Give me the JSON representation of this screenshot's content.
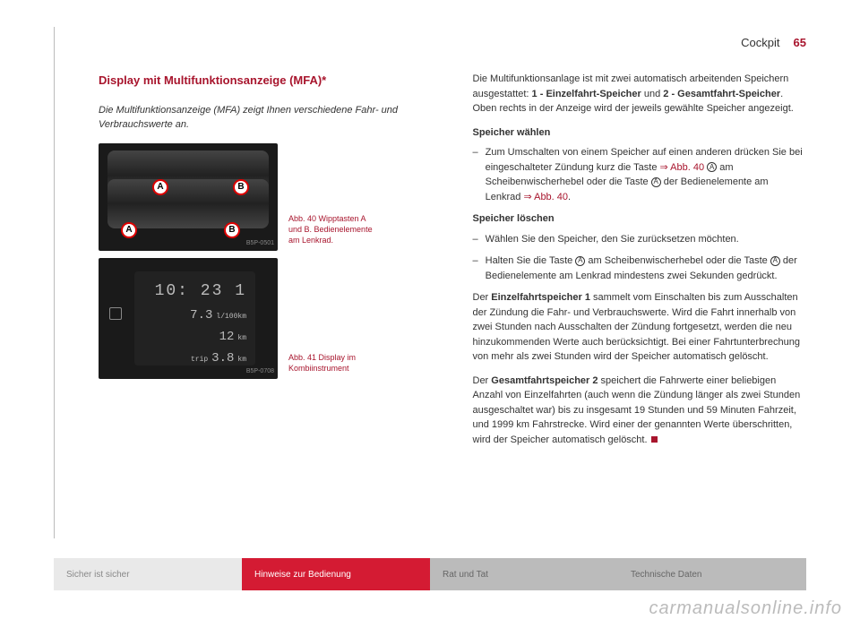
{
  "header": {
    "section": "Cockpit",
    "page_number": "65"
  },
  "section_title": "Display mit Multifunktionsanzeige (MFA)*",
  "intro": "Die Multifunktionsanzeige (MFA) zeigt Ihnen verschiedene Fahr- und Verbrauchswerte an.",
  "figure40": {
    "caption": "Abb. 40  Wipptasten A und B. Bedienelemente am Lenkrad.",
    "label": "B5P-0501",
    "markers": {
      "a": "A",
      "b": "B"
    }
  },
  "figure41": {
    "caption": "Abb. 41  Display im Kombiinstrument",
    "label": "B5P-0708",
    "display": {
      "line1": "10: 23     1",
      "line2_val": "7.3",
      "line2_unit": "l/100km",
      "line3_val": "12",
      "line3_unit": "km",
      "line4_label": "trip",
      "line4_val": "3.8",
      "line4_unit": "km"
    }
  },
  "right_col": {
    "para1_a": "Die Multifunktionsanlage ist mit zwei automatisch arbeitenden Speichern ausgestattet: ",
    "para1_b1": "1 - Einzelfahrt-Speicher",
    "para1_mid": " und ",
    "para1_b2": "2 - Gesamtfahrt-Speicher",
    "para1_c": ". Oben rechts in der Anzeige wird der jeweils gewählte Speicher angezeigt.",
    "sub1": "Speicher wählen",
    "bullet1_a": "Zum Umschalten von einem Speicher auf einen anderen drücken Sie bei eingeschalteter Zündung kurz die Taste ",
    "bullet1_ref": "⇒ Abb. 40",
    "bullet1_b": " am Scheibenwischerhebel oder die Taste ",
    "bullet1_c": " der Bedienelemente am Lenkrad ",
    "bullet1_ref2": "⇒ Abb. 40",
    "bullet1_d": ".",
    "sub2": "Speicher löschen",
    "bullet2": "Wählen Sie den Speicher, den Sie zurücksetzen möchten.",
    "bullet3_a": "Halten Sie die Taste ",
    "bullet3_b": " am Scheibenwischerhebel oder die Taste ",
    "bullet3_c": " der Bedienelemente am Lenkrad mindestens zwei Sekunden gedrückt.",
    "para2_b": "Einzelfahrtspeicher 1",
    "para2_a": " sammelt vom Einschalten bis zum Ausschalten der Zündung die Fahr- und Verbrauchswerte. Wird die Fahrt innerhalb von zwei Stunden nach Ausschalten der Zündung fortgesetzt, werden die neu hinzukommenden Werte auch berücksichtigt. Bei einer Fahrtunterbrechung von mehr als zwei Stunden wird der Speicher automatisch gelöscht.",
    "para3_b": "Gesamtfahrtspeicher 2",
    "para3_a": " speichert die Fahrwerte einer beliebigen Anzahl von Einzelfahrten (auch wenn die Zündung länger als zwei Stunden ausgeschaltet war) bis zu insgesamt 19 Stunden und 59 Minuten Fahrzeit, und 1999 km Fahrstrecke. Wird einer der genannten Werte überschritten, wird der Speicher automatisch gelöscht.",
    "circled_a": "A"
  },
  "tabs": {
    "t1": "Sicher ist sicher",
    "t2": "Hinweise zur Bedienung",
    "t3": "Rat und Tat",
    "t4": "Technische Daten"
  },
  "watermark": "carmanualsonline.info",
  "colors": {
    "accent": "#a8152d",
    "tab_red": "#d41b33"
  }
}
